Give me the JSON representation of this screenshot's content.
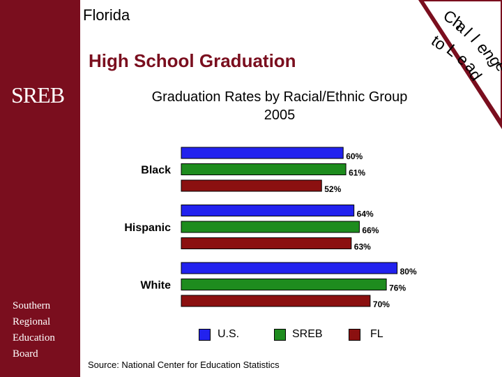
{
  "slide": {
    "state": "Florida",
    "title": "High School Graduation",
    "banner": [
      "Ch",
      "a",
      "l",
      "l",
      "e",
      "n",
      "g",
      "e",
      "to",
      "L",
      "e",
      "a",
      "d"
    ],
    "logo": "SREB",
    "org_lines": [
      "Southern",
      "Regional",
      "Education",
      "Board"
    ],
    "source": "Source: National Center for Education Statistics"
  },
  "colors": {
    "background": "#7a0e1e",
    "us": "#2222ee",
    "sreb": "#1e8c1e",
    "fl": "#8b1010"
  },
  "chart_data": {
    "type": "bar",
    "orientation": "horizontal",
    "title": "Graduation Rates by Racial/Ethnic Group",
    "subtitle": "2005",
    "categories": [
      "Black",
      "Hispanic",
      "White"
    ],
    "series": [
      {
        "name": "U.S.",
        "values": [
          60,
          64,
          80
        ],
        "labels": [
          "60%",
          "64%",
          "80%"
        ]
      },
      {
        "name": "SREB",
        "values": [
          61,
          66,
          76
        ],
        "labels": [
          "61%",
          "66%",
          "76%"
        ]
      },
      {
        "name": "FL",
        "values": [
          52,
          63,
          70
        ],
        "labels": [
          "52%",
          "63%",
          "70%"
        ]
      }
    ],
    "xlim": [
      0,
      100
    ],
    "grid": false,
    "legend_position": "bottom"
  }
}
